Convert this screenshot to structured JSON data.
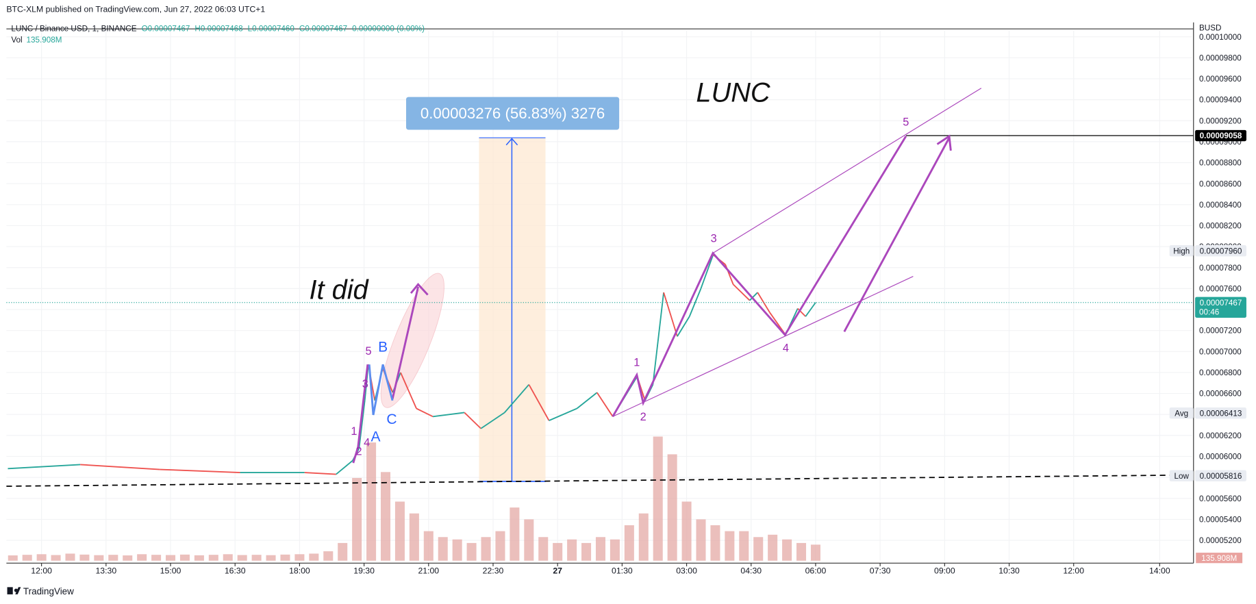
{
  "header": {
    "publisher": "BTC-XLM published on TradingView.com, Jun 27, 2022 06:03 UTC+1",
    "symbol": "LUNC / Binance USD, 1, BINANCE",
    "ohlc": [
      "O0.00007467",
      "H0.00007468",
      "L0.00007460",
      "C0.00007467",
      "0.00000000 (0.00%)"
    ],
    "vol_label": "Vol",
    "vol_value": "135.908M",
    "currency": "BUSD"
  },
  "footer": {
    "brand": "TradingView"
  },
  "chart_data": {
    "type": "line",
    "x": [
      -47,
      54,
      165,
      277,
      367,
      411,
      434,
      443,
      451,
      456,
      465,
      476,
      490,
      501,
      523,
      546,
      590,
      613,
      646,
      680,
      708,
      747,
      775,
      797,
      831,
      842,
      853,
      868,
      887,
      904,
      920,
      937,
      954,
      965,
      988,
      999,
      1016,
      1038,
      1055,
      1066,
      1080
    ],
    "values": [
      5.884e-05,
      5.922e-05,
      5.876e-05,
      5.846e-05,
      5.846e-05,
      5.83e-05,
      5.96e-05,
      6.075e-05,
      6.533e-05,
      6.877e-05,
      6.533e-05,
      6.838e-05,
      6.609e-05,
      6.8e-05,
      6.457e-05,
      6.38e-05,
      6.418e-05,
      6.266e-05,
      6.418e-05,
      6.685e-05,
      6.342e-05,
      6.457e-05,
      6.609e-05,
      6.38e-05,
      6.762e-05,
      6.533e-05,
      6.685e-05,
      7.563e-05,
      7.144e-05,
      7.334e-05,
      7.601e-05,
      7.922e-05,
      7.83e-05,
      7.64e-05,
      7.487e-05,
      7.563e-05,
      7.372e-05,
      7.159e-05,
      7.41e-05,
      7.334e-05,
      7.467e-05
    ],
    "up_color": "#26a69a",
    "down_color": "#ef5350",
    "xlim": [
      -49,
      1605
    ],
    "ylim": [
      5.006e-05,
      0.0001006
    ],
    "xticks": [
      {
        "value": 0,
        "label": "12:00"
      },
      {
        "value": 90,
        "label": "13:30"
      },
      {
        "value": 180,
        "label": "15:00"
      },
      {
        "value": 270,
        "label": "16:30"
      },
      {
        "value": 360,
        "label": "18:00"
      },
      {
        "value": 450,
        "label": "19:30"
      },
      {
        "value": 540,
        "label": "21:00"
      },
      {
        "value": 630,
        "label": "22:30"
      },
      {
        "value": 720,
        "label": "27"
      },
      {
        "value": 810,
        "label": "01:30"
      },
      {
        "value": 900,
        "label": "03:00"
      },
      {
        "value": 990,
        "label": "04:30"
      },
      {
        "value": 1080,
        "label": "06:00"
      },
      {
        "value": 1170,
        "label": "07:30"
      },
      {
        "value": 1260,
        "label": "09:00"
      },
      {
        "value": 1350,
        "label": "10:30"
      },
      {
        "value": 1440,
        "label": "12:00"
      },
      {
        "value": 1560,
        "label": "14:00"
      }
    ],
    "yticks": [
      {
        "value": 5.2e-05,
        "label": "0.00005200"
      },
      {
        "value": 5.4e-05,
        "label": "0.00005400"
      },
      {
        "value": 5.6e-05,
        "label": "0.00005600"
      },
      {
        "value": 5.8e-05,
        "label": "0.00005800"
      },
      {
        "value": 6e-05,
        "label": "0.00006000"
      },
      {
        "value": 6.2e-05,
        "label": "0.00006200"
      },
      {
        "value": 6.4e-05,
        "label": "0.00006400"
      },
      {
        "value": 6.6e-05,
        "label": "0.00006600"
      },
      {
        "value": 6.8e-05,
        "label": "0.00006800"
      },
      {
        "value": 7e-05,
        "label": "0.00007000"
      },
      {
        "value": 7.2e-05,
        "label": "0.00007200"
      },
      {
        "value": 7.4e-05,
        "label": "0.00007400"
      },
      {
        "value": 7.6e-05,
        "label": "0.00007600"
      },
      {
        "value": 7.8e-05,
        "label": "0.00007800"
      },
      {
        "value": 8e-05,
        "label": "0.00008000"
      },
      {
        "value": 8.2e-05,
        "label": "0.00008200"
      },
      {
        "value": 8.4e-05,
        "label": "0.00008400"
      },
      {
        "value": 8.6e-05,
        "label": "0.00008600"
      },
      {
        "value": 8.8e-05,
        "label": "0.00008800"
      },
      {
        "value": 9e-05,
        "label": "0.00009000"
      },
      {
        "value": 9.2e-05,
        "label": "0.00009200"
      },
      {
        "value": 9.4e-05,
        "label": "0.00009400"
      },
      {
        "value": 9.6e-05,
        "label": "0.00009600"
      },
      {
        "value": 9.8e-05,
        "label": "0.00009800"
      },
      {
        "value": 0.0001,
        "label": "0.00010000"
      }
    ],
    "grid": true,
    "volume": {
      "color": "#e4a9a5",
      "value_label": "135.908M",
      "x": [
        -40,
        -20,
        0,
        20,
        40,
        60,
        80,
        100,
        120,
        140,
        160,
        180,
        200,
        220,
        240,
        260,
        280,
        300,
        320,
        340,
        360,
        380,
        400,
        420,
        440,
        460,
        480,
        500,
        520,
        540,
        560,
        580,
        600,
        620,
        640,
        660,
        680,
        700,
        720,
        740,
        760,
        780,
        800,
        820,
        840,
        860,
        880,
        900,
        920,
        940,
        960,
        980,
        1000,
        1020,
        1040,
        1060,
        1080
      ],
      "values": [
        45,
        50,
        55,
        48,
        60,
        52,
        47,
        50,
        45,
        55,
        50,
        48,
        52,
        46,
        50,
        55,
        48,
        50,
        47,
        52,
        55,
        60,
        80,
        150,
        700,
        1000,
        750,
        500,
        400,
        250,
        200,
        180,
        150,
        200,
        250,
        450,
        350,
        200,
        150,
        180,
        150,
        200,
        180,
        300,
        400,
        1050,
        900,
        500,
        350,
        300,
        250,
        250,
        200,
        220,
        180,
        150,
        135.908
      ]
    },
    "price_labels": [
      {
        "value": 9.058e-05,
        "label": "0.00009058",
        "color": "#000000"
      },
      {
        "name": "High",
        "value": 7.96e-05,
        "label": "0.00007960",
        "color": "#e9ecf2"
      },
      {
        "value": 7.467e-05,
        "label": "0.00007467",
        "countdown": "00:46",
        "color": "#26a69a"
      },
      {
        "name": "Avg",
        "value": 6.413e-05,
        "label": "0.00006413",
        "color": "#e9ecf2"
      },
      {
        "name": "Low",
        "value": 5.816e-05,
        "label": "0.00005816",
        "color": "#e9ecf2"
      }
    ],
    "annotations": {
      "title": "LUNC",
      "note": "It did",
      "measure": "0.00003276 (56.83%) 3276",
      "waves": [
        "1",
        "2",
        "3",
        "4",
        "5",
        "A",
        "B",
        "C",
        "1",
        "2",
        "3",
        "4",
        "5"
      ]
    }
  }
}
